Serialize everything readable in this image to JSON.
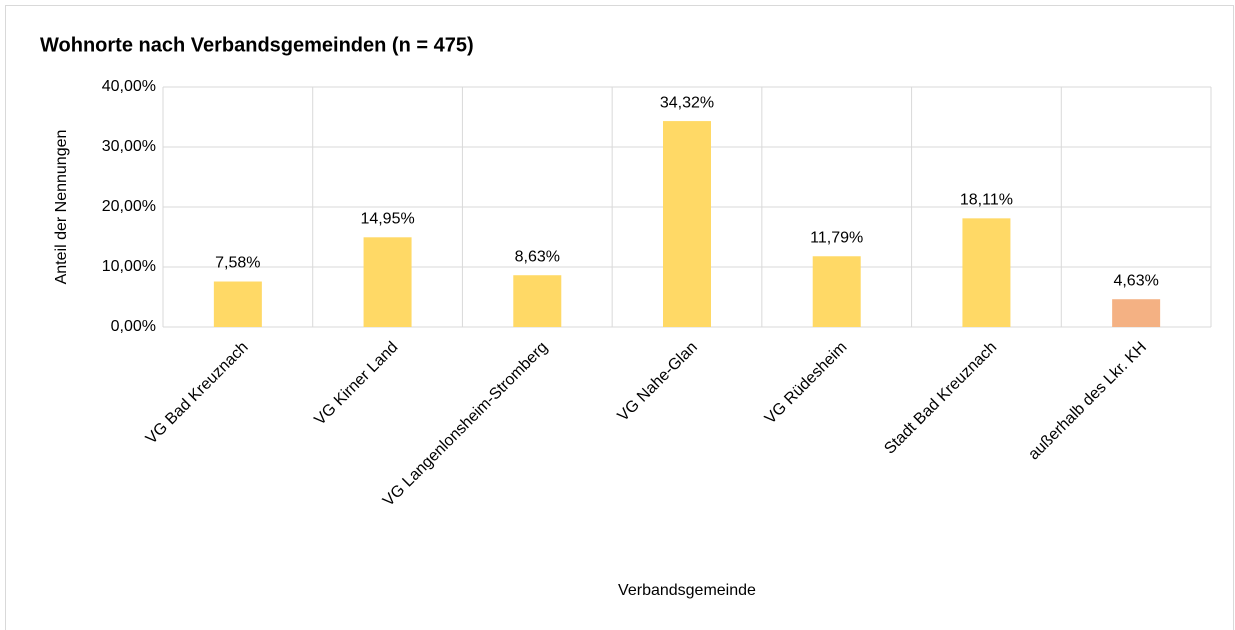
{
  "chart_data": {
    "type": "bar",
    "title": "Wohnorte nach Verbandsgemeinden (n = 475)",
    "x_label": "Verbandsgemeinde",
    "y_label": "Anteil der Nennungen",
    "categories": [
      "VG Bad Kreuznach",
      "VG Kirner Land",
      "VG Langenlonsheim-Stromberg",
      "VG Nahe-Glan",
      "VG Rüdesheim",
      "Stadt Bad Kreuznach",
      "außerhalb des Lkr. KH"
    ],
    "values": [
      7.58,
      14.95,
      8.63,
      34.32,
      11.79,
      18.11,
      4.63
    ],
    "value_labels": [
      "7,58%",
      "14,95%",
      "8,63%",
      "34,32%",
      "11,79%",
      "18,11%",
      "4,63%"
    ],
    "colors": [
      "#ffd966",
      "#ffd966",
      "#ffd966",
      "#ffd966",
      "#ffd966",
      "#ffd966",
      "#f4b183"
    ],
    "ylim": [
      0,
      40
    ],
    "yticks": [
      {
        "value": 0,
        "label": "0,00%"
      },
      {
        "value": 10,
        "label": "10,00%"
      },
      {
        "value": 20,
        "label": "20,00%"
      },
      {
        "value": 30,
        "label": "30,00%"
      },
      {
        "value": 40,
        "label": "40,00%"
      }
    ],
    "grid": true
  }
}
